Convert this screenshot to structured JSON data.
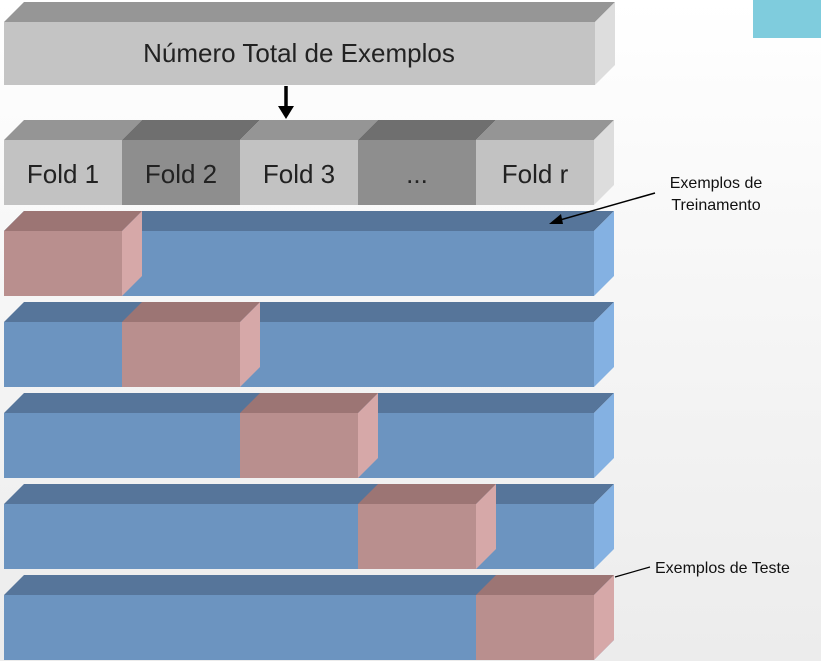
{
  "header": {
    "title": "Número Total de Exemplos"
  },
  "folds": [
    {
      "label": "Fold 1",
      "shade": "light"
    },
    {
      "label": "Fold 2",
      "shade": "dark"
    },
    {
      "label": "Fold 3",
      "shade": "light"
    },
    {
      "label": "...",
      "shade": "dark"
    },
    {
      "label": "Fold r",
      "shade": "light"
    }
  ],
  "rows": [
    {
      "test_fold": 1
    },
    {
      "test_fold": 2
    },
    {
      "test_fold": 3
    },
    {
      "test_fold": 4
    },
    {
      "test_fold": 5
    }
  ],
  "callouts": {
    "training": [
      "Exemplos de",
      "Treinamento"
    ],
    "test": "Exemplos de Teste"
  },
  "colors": {
    "train_front": "#6c94c0",
    "train_top": "#56759a",
    "train_side": "#84b1e2",
    "test_front": "#b98f8e",
    "test_top": "#9c7574",
    "test_side": "#d6a8a8",
    "header_front": "#c4c4c4",
    "header_top": "#969696",
    "header_side": "#dddddd",
    "fold_light_front": "#c2c2c2",
    "fold_light_top": "#959595",
    "fold_dark_front": "#8e8e8e",
    "fold_dark_top": "#6f6f6f",
    "corner_accent": "#7fccdd"
  }
}
